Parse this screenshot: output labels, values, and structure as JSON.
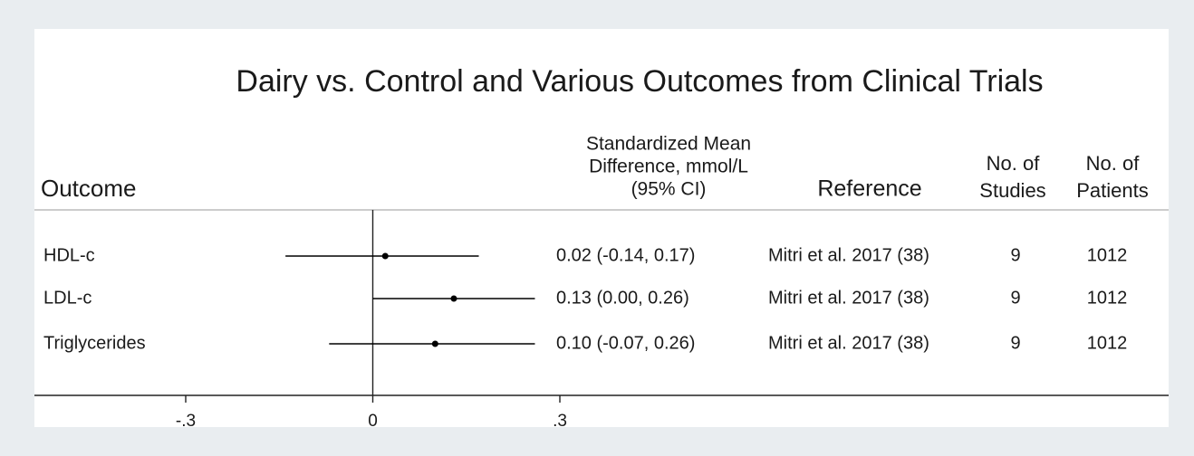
{
  "chart_data": {
    "type": "forest",
    "title": "Dairy vs. Control and Various Outcomes from Clinical Trials",
    "headers": {
      "outcome": "Outcome",
      "estimate": [
        "Standardized Mean",
        "Difference, mmol/L",
        "(95% CI)"
      ],
      "reference": "Reference",
      "studies": [
        "No. of",
        "Studies"
      ],
      "patients": [
        "No. of",
        "Patients"
      ]
    },
    "categories": [
      "HDL-c",
      "LDL-c",
      "Triglycerides"
    ],
    "values": [
      0.02,
      0.13,
      0.1
    ],
    "lower": [
      -0.14,
      0.0,
      -0.07
    ],
    "upper": [
      0.17,
      0.26,
      0.26
    ],
    "value_labels": [
      "0.02 (-0.14, 0.17)",
      "0.13 (0.00, 0.26)",
      "0.10 (-0.07, 0.26)"
    ],
    "references": [
      "Mitri et al. 2017 (38)",
      "Mitri et al. 2017 (38)",
      "Mitri et al. 2017 (38)"
    ],
    "studies": [
      9,
      9,
      9
    ],
    "patients": [
      1012,
      1012,
      1012
    ],
    "color": "#000000",
    "xlim": [
      -0.3,
      0.3
    ],
    "xticks": [
      {
        "value": -0.3,
        "label": "-.3"
      },
      0,
      {
        "value": 0.3,
        "label": ".3"
      }
    ]
  }
}
